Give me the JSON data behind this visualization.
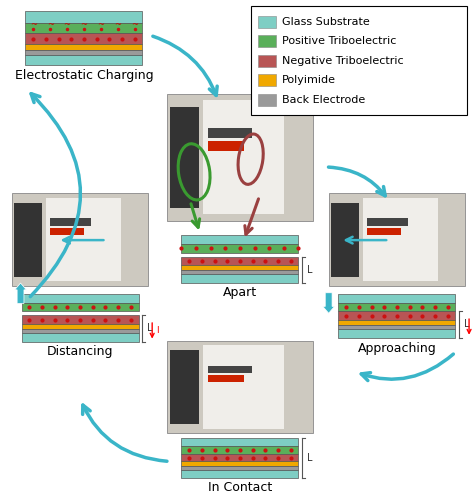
{
  "legend_items": [
    {
      "label": "Glass Substrate",
      "color": "#7ecec4"
    },
    {
      "label": "Positive Triboelectric",
      "color": "#5aaf5a"
    },
    {
      "label": "Negative Triboelectric",
      "color": "#b85555"
    },
    {
      "label": "Polyimide",
      "color": "#f0a800"
    },
    {
      "label": "Back Electrode",
      "color": "#9a9a9a"
    }
  ],
  "stage_labels": [
    "Electrostatic Charging",
    "Apart",
    "Approaching",
    "In Contact",
    "Distancing"
  ],
  "arrow_color": "#3ab5c8",
  "bg_color": "#ffffff",
  "label_fontsize": 9,
  "legend_fontsize": 8
}
